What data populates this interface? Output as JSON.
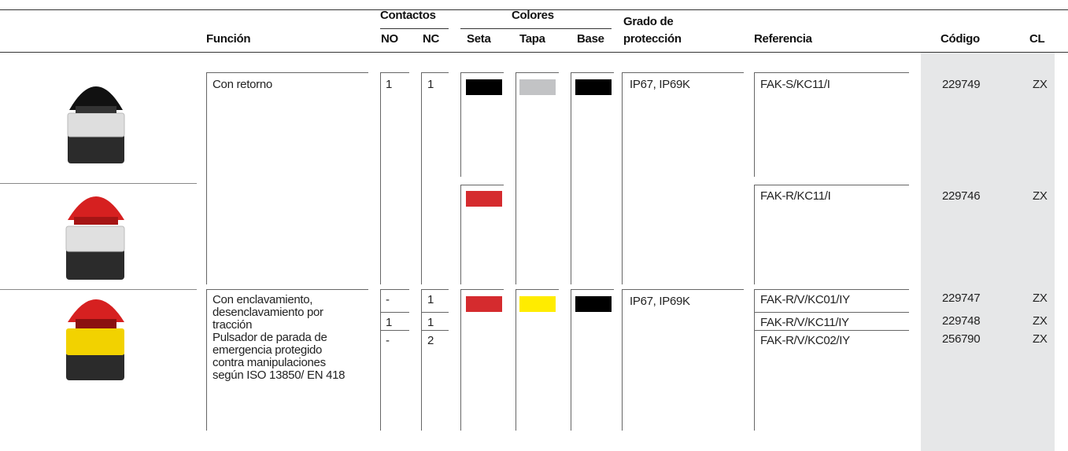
{
  "header": {
    "group_contactos": "Contactos",
    "group_colores": "Colores",
    "grado_line1": "Grado de",
    "columns": {
      "funcion": "Función",
      "no": "NO",
      "nc": "NC",
      "seta": "Seta",
      "tapa": "Tapa",
      "base": "Base",
      "proteccion": "protección",
      "referencia": "Referencia",
      "codigo": "Código",
      "cl": "CL"
    }
  },
  "rows": [
    {
      "funcion": [
        "Con retorno"
      ],
      "contacts": [
        {
          "no": "1",
          "nc": "1"
        }
      ],
      "colors": {
        "seta": "#000000",
        "tapa": "#c2c3c5",
        "base": "#000000"
      },
      "proteccion": "IP67, IP69K",
      "items": [
        {
          "referencia": "FAK-S/KC11/I",
          "codigo": "229749",
          "cl": "ZX"
        }
      ]
    },
    {
      "colors": {
        "seta": "#d52b2e"
      },
      "items": [
        {
          "referencia": "FAK-R/KC11/I",
          "codigo": "229746",
          "cl": "ZX"
        }
      ]
    },
    {
      "funcion": [
        "Con enclavamiento,",
        "desenclavamiento por",
        "tracción",
        "Pulsador de parada de",
        "emergencia protegido",
        "contra manipulaciones",
        "según ISO 13850/ EN 418"
      ],
      "contacts": [
        {
          "no": "-",
          "nc": "1"
        },
        {
          "no": "1",
          "nc": "1"
        },
        {
          "no": "-",
          "nc": "2"
        }
      ],
      "colors": {
        "seta": "#d52b2e",
        "tapa": "#ffec00",
        "base": "#000000"
      },
      "proteccion": "IP67, IP69K",
      "items": [
        {
          "referencia": "FAK-R/V/KC01/IY",
          "codigo": "229747",
          "cl": "ZX"
        },
        {
          "referencia": "FAK-R/V/KC11/IY",
          "codigo": "229748",
          "cl": "ZX"
        },
        {
          "referencia": "FAK-R/V/KC02/IY",
          "codigo": "256790",
          "cl": "ZX"
        }
      ]
    }
  ]
}
